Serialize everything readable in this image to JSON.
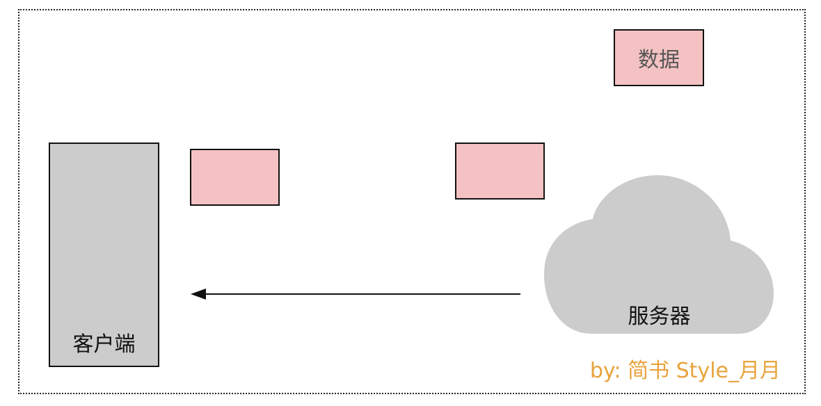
{
  "diagram": {
    "client_label": "客户端",
    "server_label": "服务器",
    "data_label": "数据",
    "credit": "by: 简书 Style_月月"
  },
  "colors": {
    "client_fill": "#cccccc",
    "server_fill": "#cccccc",
    "data_fill": "#f4c2c2",
    "credit_text": "#e8a33c",
    "stroke": "#111111"
  },
  "icons": {
    "server": "cloud-icon",
    "flow": "arrow-left-icon"
  }
}
